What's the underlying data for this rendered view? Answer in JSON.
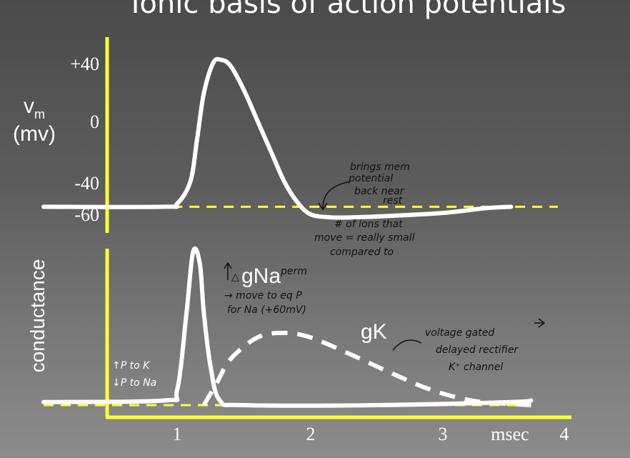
{
  "title": "Ionic basis of action potentials",
  "chart_data": [
    {
      "type": "line",
      "name": "membrane-potential-panel",
      "ylabel_main": "v",
      "ylabel_sub": "m",
      "ylabel_unit": "(mv)",
      "y_ticks": [
        {
          "label": "+40",
          "value": 40
        },
        {
          "label": "0",
          "value": 0
        },
        {
          "label": "-40",
          "value": -40
        },
        {
          "label": "-60",
          "value": -60
        }
      ],
      "series": [
        {
          "style": "solid",
          "points": [
            [
              0.0,
              -55
            ],
            [
              0.9,
              -55
            ],
            [
              1.0,
              -53
            ],
            [
              1.1,
              -38
            ],
            [
              1.15,
              -10
            ],
            [
              1.2,
              20
            ],
            [
              1.27,
              40
            ],
            [
              1.33,
              42
            ],
            [
              1.4,
              38
            ],
            [
              1.5,
              22
            ],
            [
              1.6,
              2
            ],
            [
              1.7,
              -18
            ],
            [
              1.8,
              -38
            ],
            [
              1.9,
              -52
            ],
            [
              2.0,
              -60
            ],
            [
              2.15,
              -62
            ],
            [
              2.3,
              -62
            ],
            [
              2.6,
              -61
            ],
            [
              3.0,
              -59
            ],
            [
              3.3,
              -56
            ],
            [
              3.5,
              -55
            ]
          ]
        },
        {
          "style": "dashed",
          "points": [
            [
              0.45,
              -55
            ],
            [
              3.85,
              -55
            ]
          ]
        }
      ],
      "annotations": [
        "brings mem potential back near rest",
        "# of ions that move = really small compared to"
      ]
    },
    {
      "type": "line",
      "name": "conductance-panel",
      "ylabel": "conductance",
      "x_ticks": [
        {
          "label": "1",
          "value": 1
        },
        {
          "label": "2",
          "value": 2
        },
        {
          "label": "3",
          "value": 3
        },
        {
          "label": "4",
          "value": 4
        }
      ],
      "x_unit": "msec",
      "series": [
        {
          "name": "gNa",
          "style": "solid",
          "points": [
            [
              0.0,
              0.02
            ],
            [
              0.9,
              0.03
            ],
            [
              1.0,
              0.1
            ],
            [
              1.07,
              0.6
            ],
            [
              1.12,
              1.0
            ],
            [
              1.17,
              0.92
            ],
            [
              1.2,
              0.6
            ],
            [
              1.25,
              0.25
            ],
            [
              1.32,
              0.03
            ],
            [
              1.5,
              0.0
            ],
            [
              2.5,
              0.0
            ],
            [
              3.5,
              0.02
            ],
            [
              3.65,
              0.03
            ]
          ]
        },
        {
          "name": "gK",
          "style": "dashed",
          "points": [
            [
              1.2,
              0.0
            ],
            [
              1.3,
              0.15
            ],
            [
              1.4,
              0.3
            ],
            [
              1.6,
              0.44
            ],
            [
              1.8,
              0.47
            ],
            [
              2.0,
              0.44
            ],
            [
              2.3,
              0.33
            ],
            [
              2.6,
              0.21
            ],
            [
              2.9,
              0.1
            ],
            [
              3.2,
              0.03
            ],
            [
              3.45,
              0.01
            ],
            [
              3.65,
              0.0
            ]
          ]
        },
        {
          "style": "dashed-baseline",
          "points": [
            [
              0.0,
              0.0
            ],
            [
              3.65,
              0.0
            ]
          ]
        }
      ],
      "annotations": [
        "gNa perm → move to eq P for Na (+60mV)",
        "voltage gated delayed rectifier K+ channel",
        "↑P to K ↓P to Na"
      ]
    }
  ],
  "notes": {
    "top_1": "brings mem",
    "top_2": "potential",
    "top_3": "back near",
    "top_4": "rest",
    "mid_1": "# of ions that",
    "mid_2": "move = really small",
    "mid_3": "compared to",
    "na_superscript": "perm",
    "na_1": "→ move to eq P",
    "na_2": "for Na (+60mV)",
    "k_1": "voltage gated",
    "k_2": "delayed rectifier",
    "k_3": "K⁺ channel",
    "left_1": "↑P to K",
    "left_2": "↓P to Na"
  },
  "colors": {
    "axis": "#ffff33",
    "curve": "#ffffff",
    "baseline": "#ffff33",
    "ink": "#111111"
  }
}
